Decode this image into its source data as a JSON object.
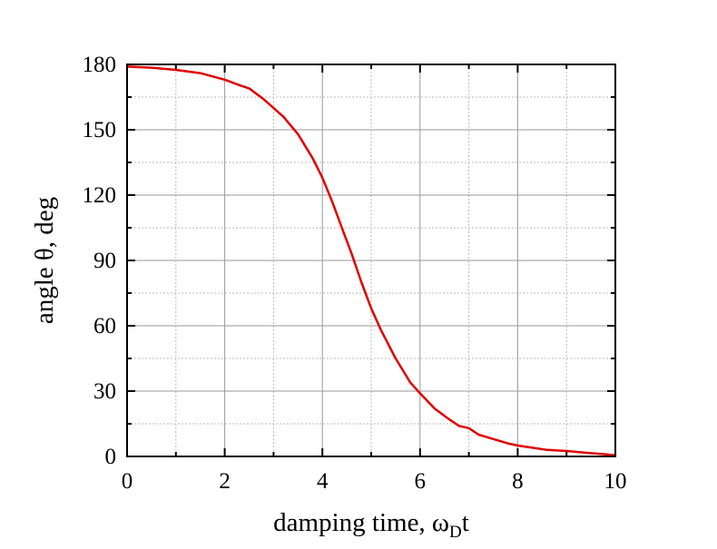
{
  "chart_data": {
    "type": "line",
    "title": "",
    "xlabel": {
      "text": "damping time, ω",
      "subscript": "D",
      "suffix": "t"
    },
    "ylabel": "angle θ, deg",
    "xlim": [
      0,
      10
    ],
    "ylim": [
      0,
      180
    ],
    "xticks": [
      0,
      2,
      4,
      6,
      8,
      10
    ],
    "yticks": [
      0,
      30,
      60,
      90,
      120,
      150,
      180
    ],
    "x_minor_step": 1,
    "y_minor_step": 15,
    "grid": true,
    "colors": {
      "line": "#e00000",
      "major_grid": "#999999",
      "minor_grid": "#bbbbbb",
      "axis": "#000000"
    },
    "series": [
      {
        "x": [
          0,
          0.5,
          1.0,
          1.5,
          2.0,
          2.3,
          2.5,
          2.8,
          3.0,
          3.2,
          3.5,
          3.8,
          4.0,
          4.2,
          4.4,
          4.6,
          4.8,
          5.0,
          5.2,
          5.5,
          5.8,
          6.0,
          6.3,
          6.6,
          6.8,
          7.0,
          7.2,
          7.5,
          7.8,
          8.0,
          8.3,
          8.6,
          9.0,
          9.5,
          9.8,
          10.0
        ],
        "y": [
          179,
          178.5,
          177.5,
          176,
          173,
          170.5,
          169,
          164,
          160,
          156,
          148,
          137,
          128,
          117,
          105,
          93,
          80,
          68,
          58,
          45,
          34,
          29,
          22,
          17,
          14,
          13,
          10,
          8,
          6,
          5,
          4,
          3,
          2.5,
          1.5,
          1,
          0.5
        ]
      }
    ]
  }
}
